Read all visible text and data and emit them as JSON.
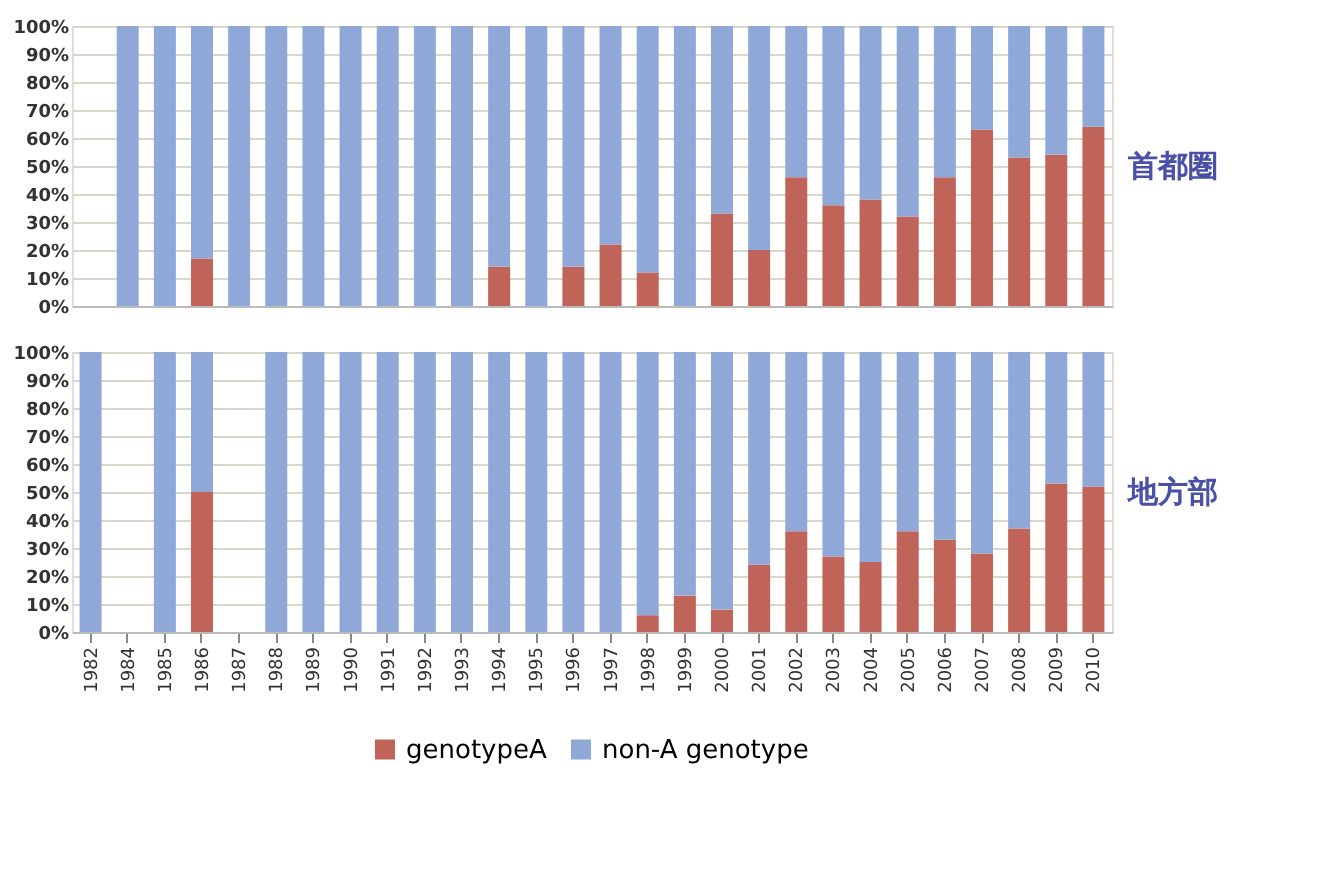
{
  "chart_data": [
    {
      "type": "bar",
      "stacked": true,
      "annotations": [
        "首都圏"
      ],
      "categories": [
        "1982",
        "1984",
        "1985",
        "1986",
        "1987",
        "1988",
        "1989",
        "1990",
        "1991",
        "1992",
        "1993",
        "1994",
        "1995",
        "1996",
        "1997",
        "1998",
        "1999",
        "2000",
        "2001",
        "2002",
        "2003",
        "2004",
        "2005",
        "2006",
        "2007",
        "2008",
        "2009",
        "2010"
      ],
      "series": [
        {
          "color": "#c0645a",
          "values": [
            null,
            0,
            0,
            17,
            0,
            0,
            0,
            0,
            0,
            0,
            0,
            14,
            0,
            14,
            22,
            12,
            0,
            33,
            20,
            46,
            36,
            38,
            32,
            46,
            63,
            53,
            54,
            64
          ]
        },
        {
          "color": "#8fa8d8",
          "values": [
            null,
            100,
            100,
            83,
            100,
            100,
            100,
            100,
            100,
            100,
            100,
            86,
            100,
            86,
            78,
            88,
            100,
            67,
            80,
            54,
            64,
            62,
            68,
            54,
            37,
            47,
            46,
            36
          ]
        }
      ],
      "ylim": [
        0,
        100
      ],
      "yticks": [
        {
          "value": 0,
          "label": "0%"
        },
        {
          "value": 10,
          "label": "10%"
        },
        {
          "value": 20,
          "label": "20%"
        },
        {
          "value": 30,
          "label": "30%"
        },
        {
          "value": 40,
          "label": "40%"
        },
        {
          "value": 50,
          "label": "50%"
        },
        {
          "value": 60,
          "label": "60%"
        },
        {
          "value": 70,
          "label": "70%"
        },
        {
          "value": 80,
          "label": "80%"
        },
        {
          "value": 90,
          "label": "90%"
        },
        {
          "value": 100,
          "label": "100%"
        }
      ],
      "grid": "y",
      "legend": false,
      "tick_labels": "y"
    },
    {
      "type": "bar",
      "stacked": true,
      "annotations": [
        "地方部"
      ],
      "categories": [
        "1982",
        "1984",
        "1985",
        "1986",
        "1987",
        "1988",
        "1989",
        "1990",
        "1991",
        "1992",
        "1993",
        "1994",
        "1995",
        "1996",
        "1997",
        "1998",
        "1999",
        "2000",
        "2001",
        "2002",
        "2003",
        "2004",
        "2005",
        "2006",
        "2007",
        "2008",
        "2009",
        "2010"
      ],
      "series": [
        {
          "name": "genotypeA",
          "color": "#c0645a",
          "values": [
            0,
            null,
            0,
            50,
            null,
            0,
            0,
            0,
            0,
            0,
            0,
            0,
            0,
            0,
            0,
            6,
            13,
            8,
            24,
            36,
            27,
            25,
            36,
            33,
            28,
            37,
            53,
            52
          ]
        },
        {
          "name": "non-A genotype",
          "color": "#8fa8d8",
          "values": [
            100,
            null,
            100,
            50,
            null,
            100,
            100,
            100,
            100,
            100,
            100,
            100,
            100,
            100,
            100,
            94,
            87,
            92,
            76,
            64,
            73,
            75,
            64,
            67,
            72,
            63,
            47,
            48
          ]
        }
      ],
      "ylim": [
        0,
        100
      ],
      "yticks": [
        {
          "value": 0,
          "label": "0%"
        },
        {
          "value": 10,
          "label": "10%"
        },
        {
          "value": 20,
          "label": "20%"
        },
        {
          "value": 30,
          "label": "30%"
        },
        {
          "value": 40,
          "label": "40%"
        },
        {
          "value": 50,
          "label": "50%"
        },
        {
          "value": 60,
          "label": "60%"
        },
        {
          "value": 70,
          "label": "70%"
        },
        {
          "value": 80,
          "label": "80%"
        },
        {
          "value": 90,
          "label": "90%"
        },
        {
          "value": 100,
          "label": "100%"
        }
      ],
      "grid": "y",
      "legend": "bottom"
    }
  ]
}
